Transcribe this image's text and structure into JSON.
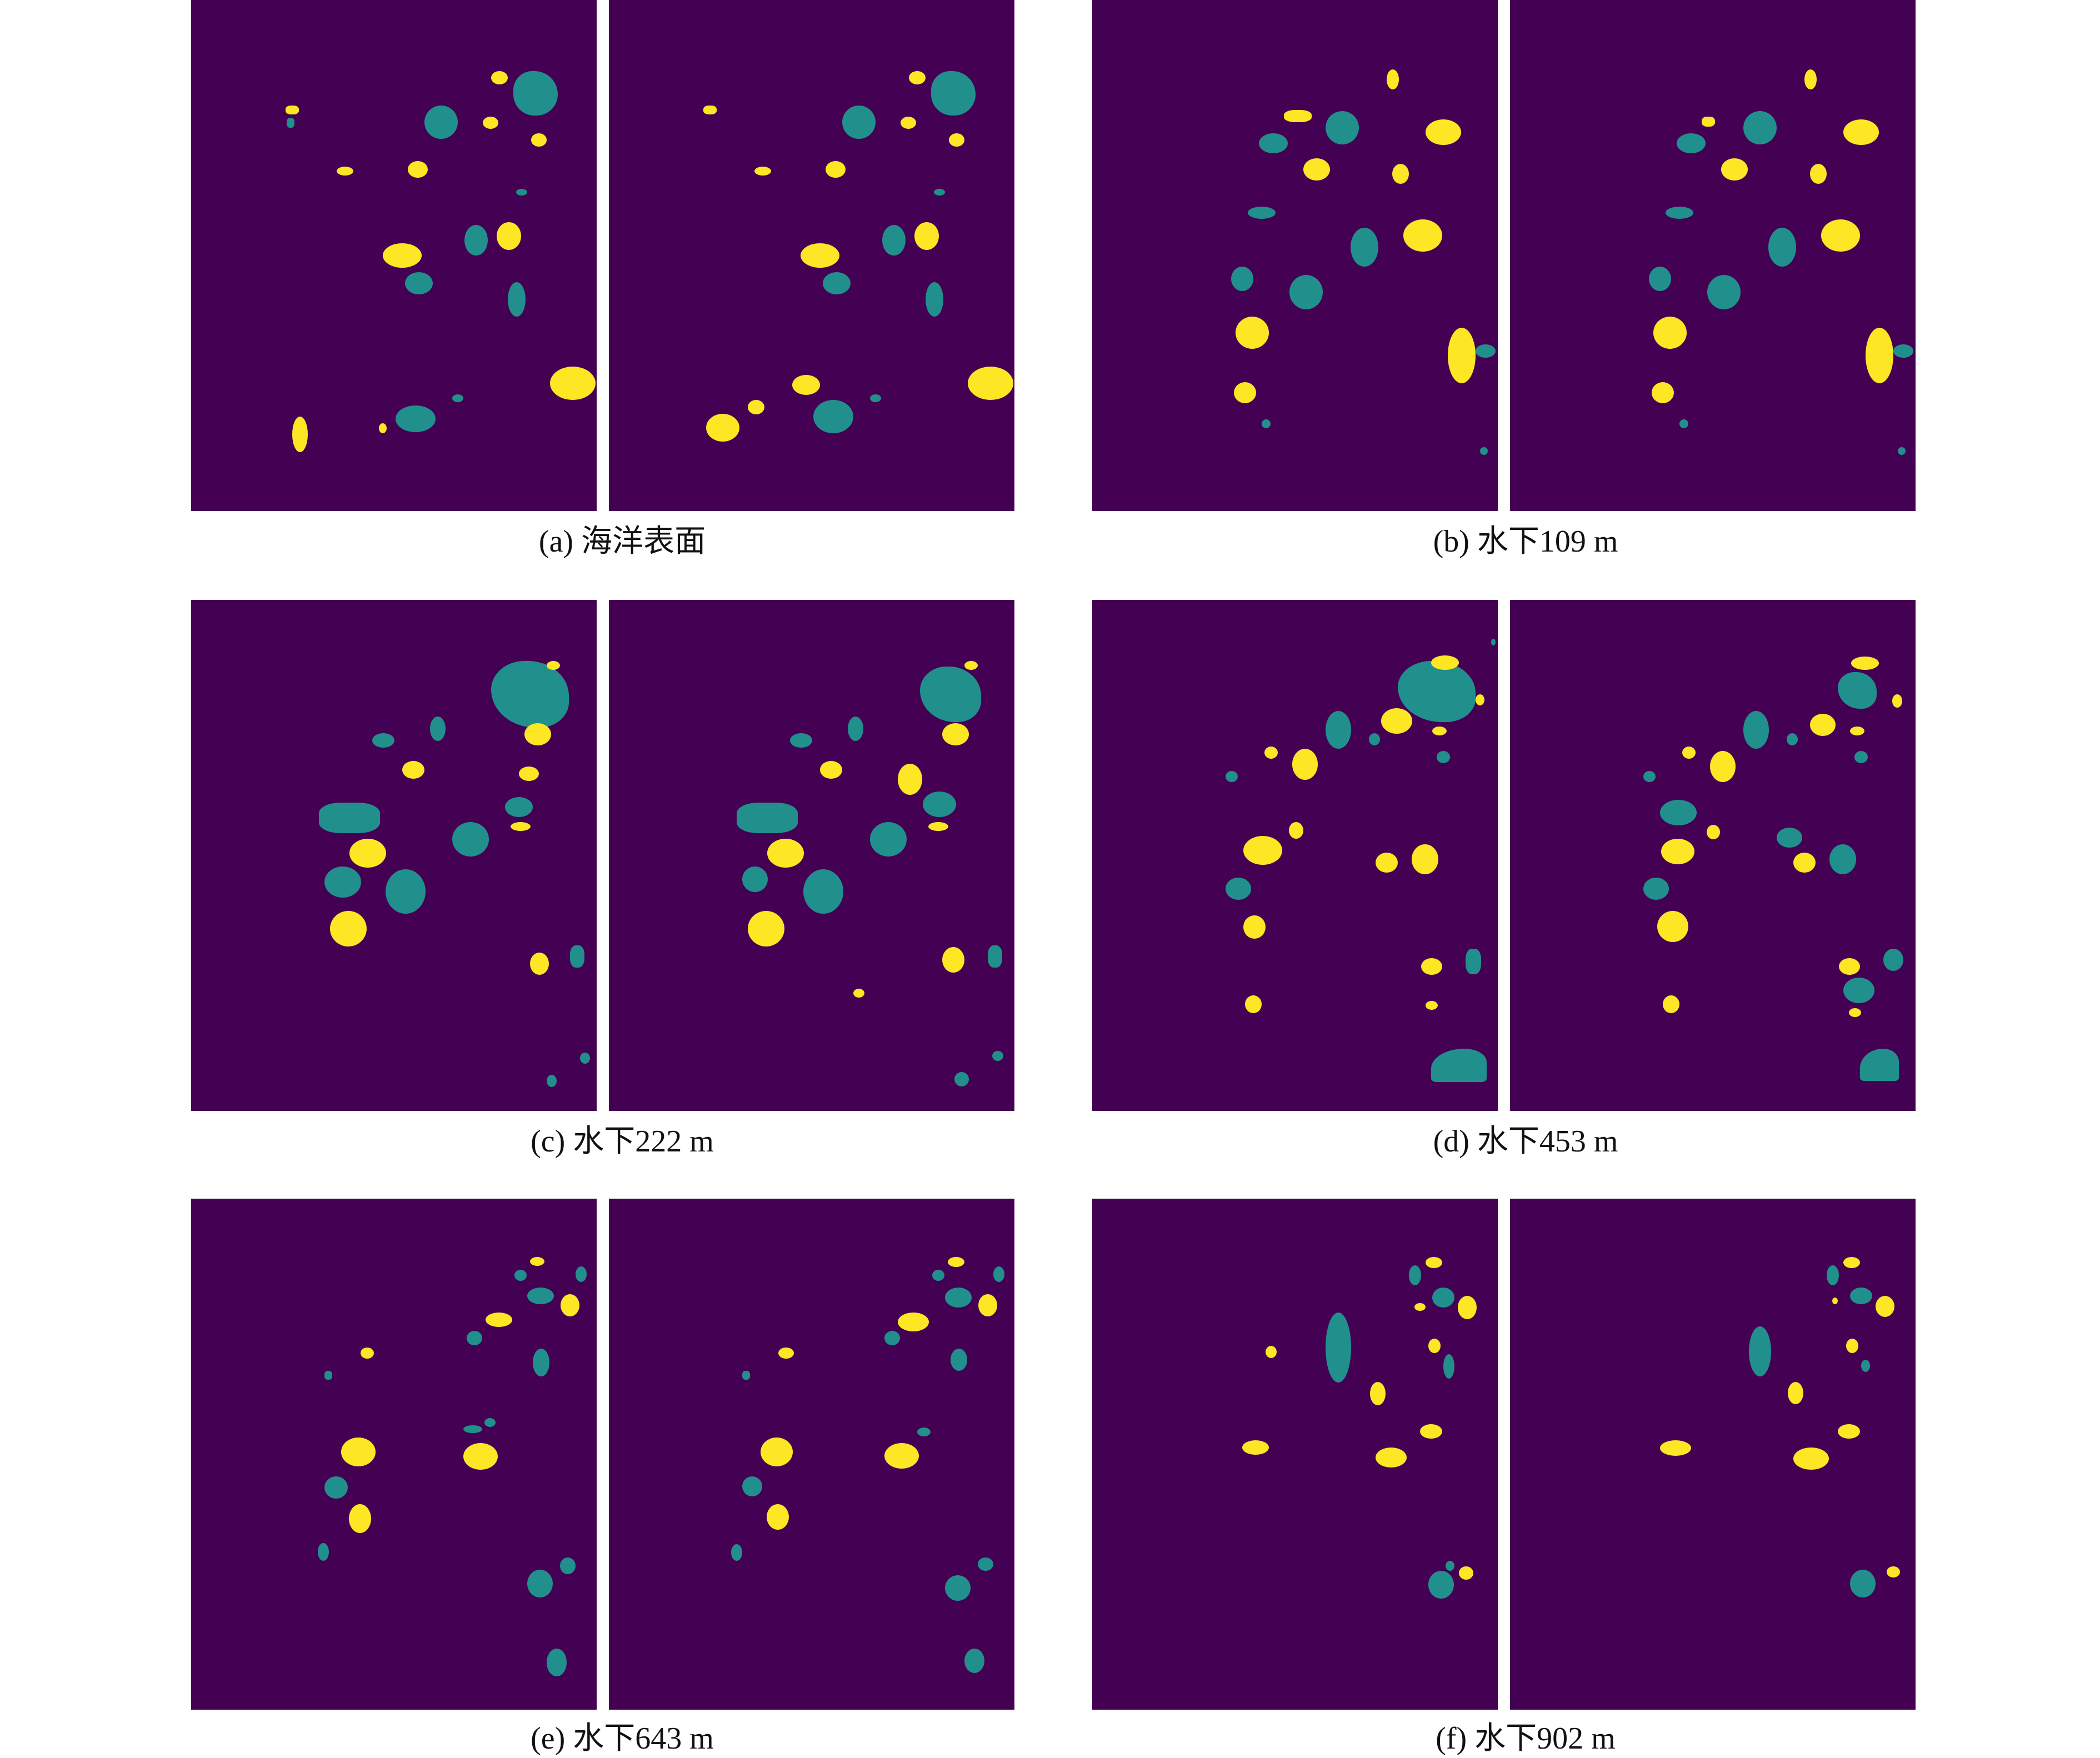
{
  "colors": {
    "background": "#440154",
    "yellow_class": "#fde725",
    "teal_class": "#21908c",
    "page": "#ffffff"
  },
  "figures": [
    {
      "label": "(a) 海洋表面"
    },
    {
      "label": "(b) 水下109 m"
    },
    {
      "label": "(c) 水下222 m"
    },
    {
      "label": "(d) 水下453 m"
    },
    {
      "label": "(e) 水下643 m"
    },
    {
      "label": "(f) 水下902 m"
    }
  ]
}
